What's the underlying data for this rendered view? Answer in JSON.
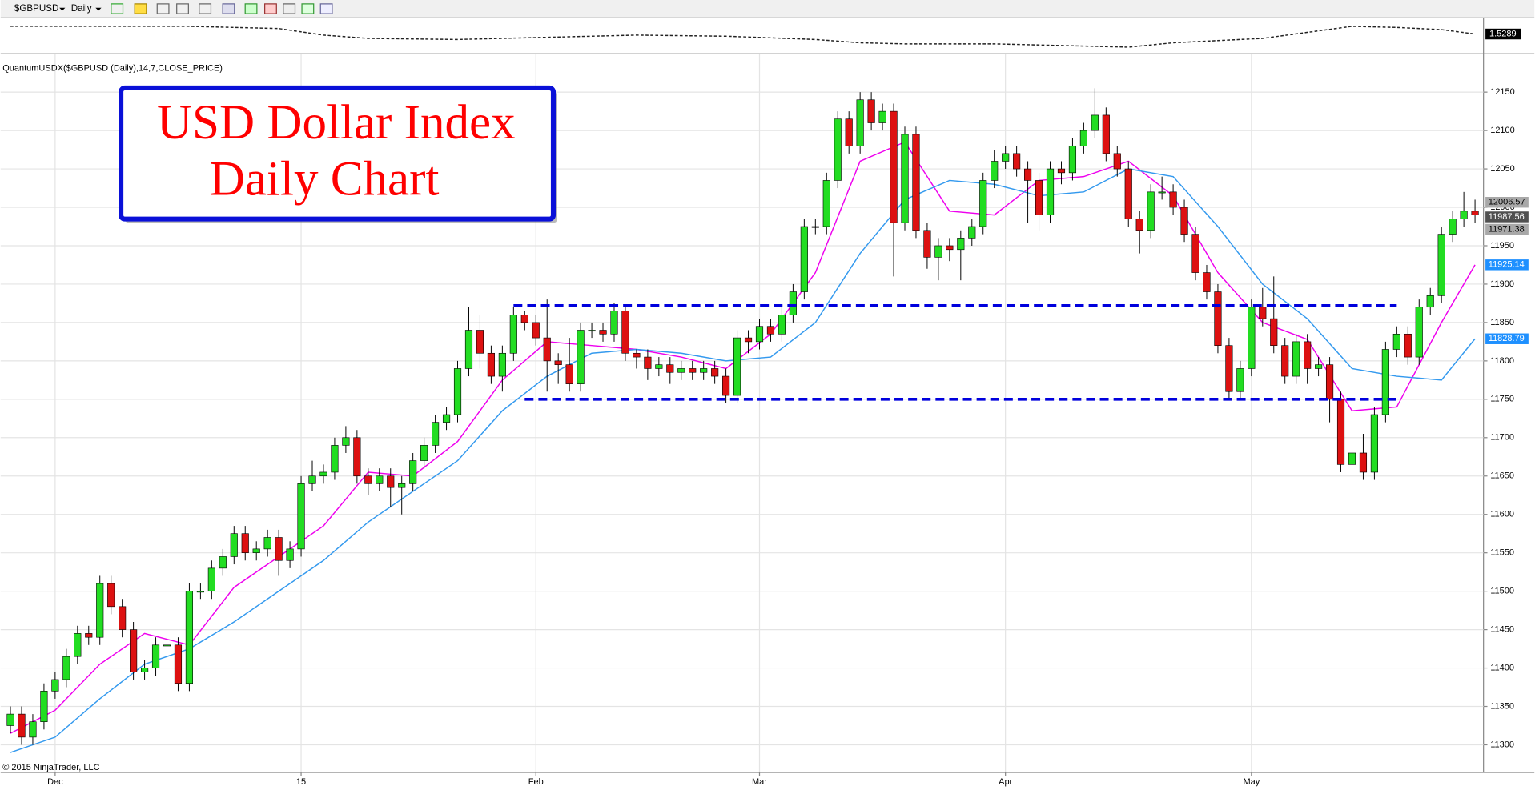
{
  "toolbar": {
    "symbol": "$GBPUSD",
    "interval": "Daily"
  },
  "indicator_label": "QuantumUSDX($GBPUSD (Daily),14,7,CLOSE_PRICE)",
  "footer": "© 2015 NinjaTrader, LLC",
  "chart_data": [
    {
      "type": "candlestick",
      "title_lines": [
        "USD Dollar Index",
        "Daily Chart"
      ],
      "categories": [
        null,
        null,
        null,
        null,
        "Dec",
        null,
        null,
        null,
        null,
        null,
        null,
        null,
        null,
        null,
        null,
        null,
        null,
        null,
        null,
        null,
        null,
        null,
        null,
        null,
        null,
        null,
        "15",
        null,
        null,
        null,
        null,
        null,
        null,
        null,
        null,
        null,
        null,
        null,
        null,
        null,
        null,
        null,
        null,
        null,
        null,
        null,
        null,
        "Feb",
        null,
        null,
        null,
        null,
        null,
        null,
        null,
        null,
        null,
        null,
        null,
        null,
        null,
        null,
        null,
        null,
        null,
        null,
        null,
        "Mar",
        null,
        null,
        null,
        null,
        null,
        null,
        null,
        null,
        null,
        null,
        null,
        null,
        null,
        null,
        null,
        null,
        null,
        null,
        null,
        null,
        null,
        "Apr",
        null,
        null,
        null,
        null,
        null,
        null,
        null,
        null,
        null,
        null,
        null,
        null,
        null,
        null,
        null,
        null,
        null,
        null,
        null,
        null,
        null,
        "May",
        null,
        null,
        null,
        null,
        null,
        null,
        null,
        null,
        null,
        null,
        null,
        null,
        null,
        null,
        null,
        null,
        null,
        null,
        null,
        null
      ],
      "open": [
        11325,
        11340,
        11310,
        11330,
        11370,
        11385,
        11415,
        11445,
        11440,
        11510,
        11480,
        11450,
        11395,
        11400,
        11430,
        11430,
        11380,
        11500,
        11500,
        11530,
        11545,
        11575,
        11550,
        11555,
        11570,
        11540,
        11555,
        11640,
        11650,
        11655,
        11690,
        11700,
        11650,
        11640,
        11650,
        11635,
        11640,
        11670,
        11690,
        11720,
        11730,
        11790,
        11840,
        11810,
        11780,
        11810,
        11860,
        11850,
        11830,
        11800,
        11795,
        11770,
        11840,
        11840,
        11835,
        11865,
        11810,
        11805,
        11790,
        11795,
        11785,
        11790,
        11785,
        11790,
        11780,
        11755,
        11830,
        11825,
        11845,
        11835,
        11860,
        11890,
        11975,
        11975,
        12035,
        12115,
        12080,
        12140,
        12110,
        12125,
        11980,
        12095,
        11970,
        11935,
        11950,
        11945,
        11960,
        11975,
        12035,
        12060,
        12070,
        12050,
        12035,
        11990,
        12050,
        12045,
        12080,
        12100,
        12120,
        12070,
        12050,
        11985,
        11970,
        12020,
        12020,
        12000,
        11965,
        11915,
        11890,
        11820,
        11760,
        11790,
        11870,
        11855,
        11820,
        11780,
        11825,
        11790,
        11795,
        11750,
        11665,
        11680,
        11655,
        11730,
        11815,
        11835,
        11805,
        11870,
        11885,
        11965,
        11985,
        11995
      ],
      "high": [
        11350,
        11350,
        11340,
        11380,
        11395,
        11425,
        11455,
        11455,
        11520,
        11520,
        11490,
        11460,
        11410,
        11440,
        11440,
        11440,
        11510,
        11510,
        11540,
        11555,
        11585,
        11585,
        11565,
        11580,
        11580,
        11565,
        11650,
        11670,
        11665,
        11700,
        11715,
        11710,
        11660,
        11660,
        11660,
        11650,
        11680,
        11700,
        11730,
        11740,
        11800,
        11870,
        11860,
        11820,
        11820,
        11870,
        11865,
        11860,
        11880,
        11810,
        11830,
        11850,
        11850,
        11850,
        11875,
        11870,
        11815,
        11815,
        11805,
        11805,
        11800,
        11800,
        11800,
        11800,
        11790,
        11840,
        11840,
        11855,
        11855,
        11870,
        11900,
        11985,
        11985,
        12045,
        12125,
        12125,
        12150,
        12150,
        12135,
        12135,
        12105,
        12105,
        11980,
        11960,
        11960,
        11970,
        11985,
        12045,
        12075,
        12080,
        12080,
        12060,
        12045,
        12060,
        12060,
        12090,
        12110,
        12155,
        12130,
        12080,
        12060,
        11995,
        12030,
        12040,
        12030,
        12010,
        11975,
        11925,
        11900,
        11830,
        11800,
        11880,
        11895,
        11910,
        11830,
        11835,
        11835,
        11805,
        11805,
        11760,
        11690,
        11705,
        11740,
        11825,
        11845,
        11845,
        11880,
        11895,
        11975,
        11995,
        12020,
        12010
      ],
      "low": [
        11315,
        11300,
        11300,
        11320,
        11360,
        11375,
        11405,
        11430,
        11430,
        11470,
        11440,
        11385,
        11385,
        11390,
        11420,
        11370,
        11370,
        11490,
        11490,
        11520,
        11535,
        11540,
        11540,
        11545,
        11520,
        11530,
        11545,
        11630,
        11640,
        11645,
        11680,
        11640,
        11625,
        11630,
        11610,
        11600,
        11630,
        11660,
        11680,
        11710,
        11720,
        11780,
        11790,
        11770,
        11760,
        11800,
        11840,
        11820,
        11760,
        11770,
        11760,
        11760,
        11830,
        11825,
        11825,
        11800,
        11790,
        11775,
        11780,
        11770,
        11775,
        11775,
        11775,
        11770,
        11745,
        11745,
        11810,
        11815,
        11825,
        11825,
        11850,
        11880,
        11965,
        11965,
        12025,
        12070,
        12070,
        12100,
        12100,
        11910,
        11970,
        11960,
        11920,
        11905,
        11930,
        11905,
        11950,
        11965,
        12025,
        12050,
        12040,
        11980,
        11970,
        11980,
        12030,
        12035,
        12070,
        12090,
        12060,
        12040,
        11975,
        11940,
        11960,
        12010,
        11990,
        11955,
        11905,
        11880,
        11810,
        11750,
        11750,
        11780,
        11845,
        11810,
        11770,
        11770,
        11770,
        11780,
        11720,
        11655,
        11630,
        11645,
        11645,
        11720,
        11805,
        11795,
        11795,
        11860,
        11875,
        11955,
        11975,
        11980
      ],
      "close": [
        11340,
        11310,
        11330,
        11370,
        11385,
        11415,
        11445,
        11440,
        11510,
        11480,
        11450,
        11395,
        11400,
        11430,
        11430,
        11380,
        11500,
        11500,
        11530,
        11545,
        11575,
        11550,
        11555,
        11570,
        11540,
        11555,
        11640,
        11650,
        11655,
        11690,
        11700,
        11650,
        11640,
        11650,
        11635,
        11640,
        11670,
        11690,
        11720,
        11730,
        11790,
        11840,
        11810,
        11780,
        11810,
        11860,
        11850,
        11830,
        11800,
        11795,
        11770,
        11840,
        11840,
        11835,
        11865,
        11810,
        11805,
        11790,
        11795,
        11785,
        11790,
        11785,
        11790,
        11780,
        11755,
        11830,
        11825,
        11845,
        11835,
        11860,
        11890,
        11975,
        11975,
        12035,
        12115,
        12080,
        12140,
        12110,
        12125,
        11980,
        12095,
        11970,
        11935,
        11950,
        11945,
        11960,
        11975,
        12035,
        12060,
        12070,
        12050,
        12035,
        11990,
        12050,
        12045,
        12080,
        12100,
        12120,
        12070,
        12050,
        11985,
        11970,
        12020,
        12020,
        12000,
        11965,
        11915,
        11890,
        11820,
        11760,
        11790,
        11870,
        11855,
        11820,
        11780,
        11825,
        11790,
        11795,
        11750,
        11665,
        11680,
        11655,
        11730,
        11815,
        11835,
        11805,
        11870,
        11885,
        11965,
        11985,
        11995,
        11990
      ],
      "up_color": "#22dd22",
      "down_color": "#dd1111",
      "overlays": [
        {
          "color": "#ee00ee",
          "x": [
            0,
            4,
            8,
            12,
            16,
            20,
            24,
            28,
            32,
            36,
            40,
            44,
            48,
            52,
            56,
            60,
            64,
            68,
            72,
            76,
            80,
            84,
            88,
            92,
            96,
            100,
            104,
            108,
            112,
            116,
            120,
            124,
            128,
            131
          ],
          "values": [
            11315,
            11345,
            11405,
            11445,
            11430,
            11505,
            11545,
            11585,
            11655,
            11650,
            11695,
            11775,
            11825,
            11820,
            11815,
            11805,
            11790,
            11835,
            11915,
            12060,
            12085,
            11995,
            11990,
            12035,
            12040,
            12060,
            12015,
            11915,
            11850,
            11828,
            11735,
            11740,
            11850,
            11925.14
          ]
        },
        {
          "color": "#3399ee",
          "x": [
            0,
            4,
            8,
            12,
            16,
            20,
            24,
            28,
            32,
            36,
            40,
            44,
            48,
            52,
            56,
            60,
            64,
            68,
            72,
            76,
            80,
            84,
            88,
            92,
            96,
            100,
            104,
            108,
            112,
            116,
            120,
            124,
            128,
            131
          ],
          "values": [
            11290,
            11310,
            11360,
            11405,
            11425,
            11460,
            11500,
            11540,
            11590,
            11630,
            11670,
            11735,
            11780,
            11810,
            11815,
            11810,
            11800,
            11805,
            11850,
            11940,
            12010,
            12035,
            12030,
            12015,
            12020,
            12050,
            12040,
            11975,
            11900,
            11855,
            11790,
            11780,
            11775,
            11828.79
          ]
        }
      ],
      "hlines": [
        {
          "value": 11872,
          "from": 45,
          "to": 124,
          "color": "#0000dd"
        },
        {
          "value": 11750,
          "from": 46,
          "to": 124,
          "color": "#0000dd"
        }
      ],
      "price_labels": [
        {
          "value": 12006.57,
          "color": "#a8a8a8"
        },
        {
          "value": 11987.56,
          "color": "#505050"
        },
        {
          "value": 11971.38,
          "color": "#a8a8a8"
        },
        {
          "value": 11925.14,
          "color": "#1e90ff"
        },
        {
          "value": 11828.79,
          "color": "#1e90ff"
        }
      ],
      "ylim": [
        11264,
        12200
      ],
      "yticks": [
        11300,
        11350,
        11400,
        11450,
        11500,
        11550,
        11600,
        11650,
        11700,
        11750,
        11800,
        11850,
        11900,
        11950,
        12000,
        12050,
        12100,
        12150
      ],
      "grid": true
    },
    {
      "type": "line",
      "color": "#222222",
      "x": [
        0,
        8,
        16,
        24,
        28,
        32,
        40,
        48,
        56,
        64,
        72,
        76,
        80,
        88,
        96,
        100,
        104,
        112,
        120,
        124,
        128,
        131
      ],
      "values": [
        1.5688,
        1.5688,
        1.5688,
        1.5574,
        1.5232,
        1.5061,
        1.5004,
        1.5118,
        1.5232,
        1.5175,
        1.5004,
        1.4833,
        1.4776,
        1.4776,
        1.4662,
        1.4605,
        1.4833,
        1.5061,
        1.5688,
        1.5631,
        1.5517,
        1.5289
      ],
      "ylim": [
        1.4263,
        1.6144
      ]
    }
  ]
}
